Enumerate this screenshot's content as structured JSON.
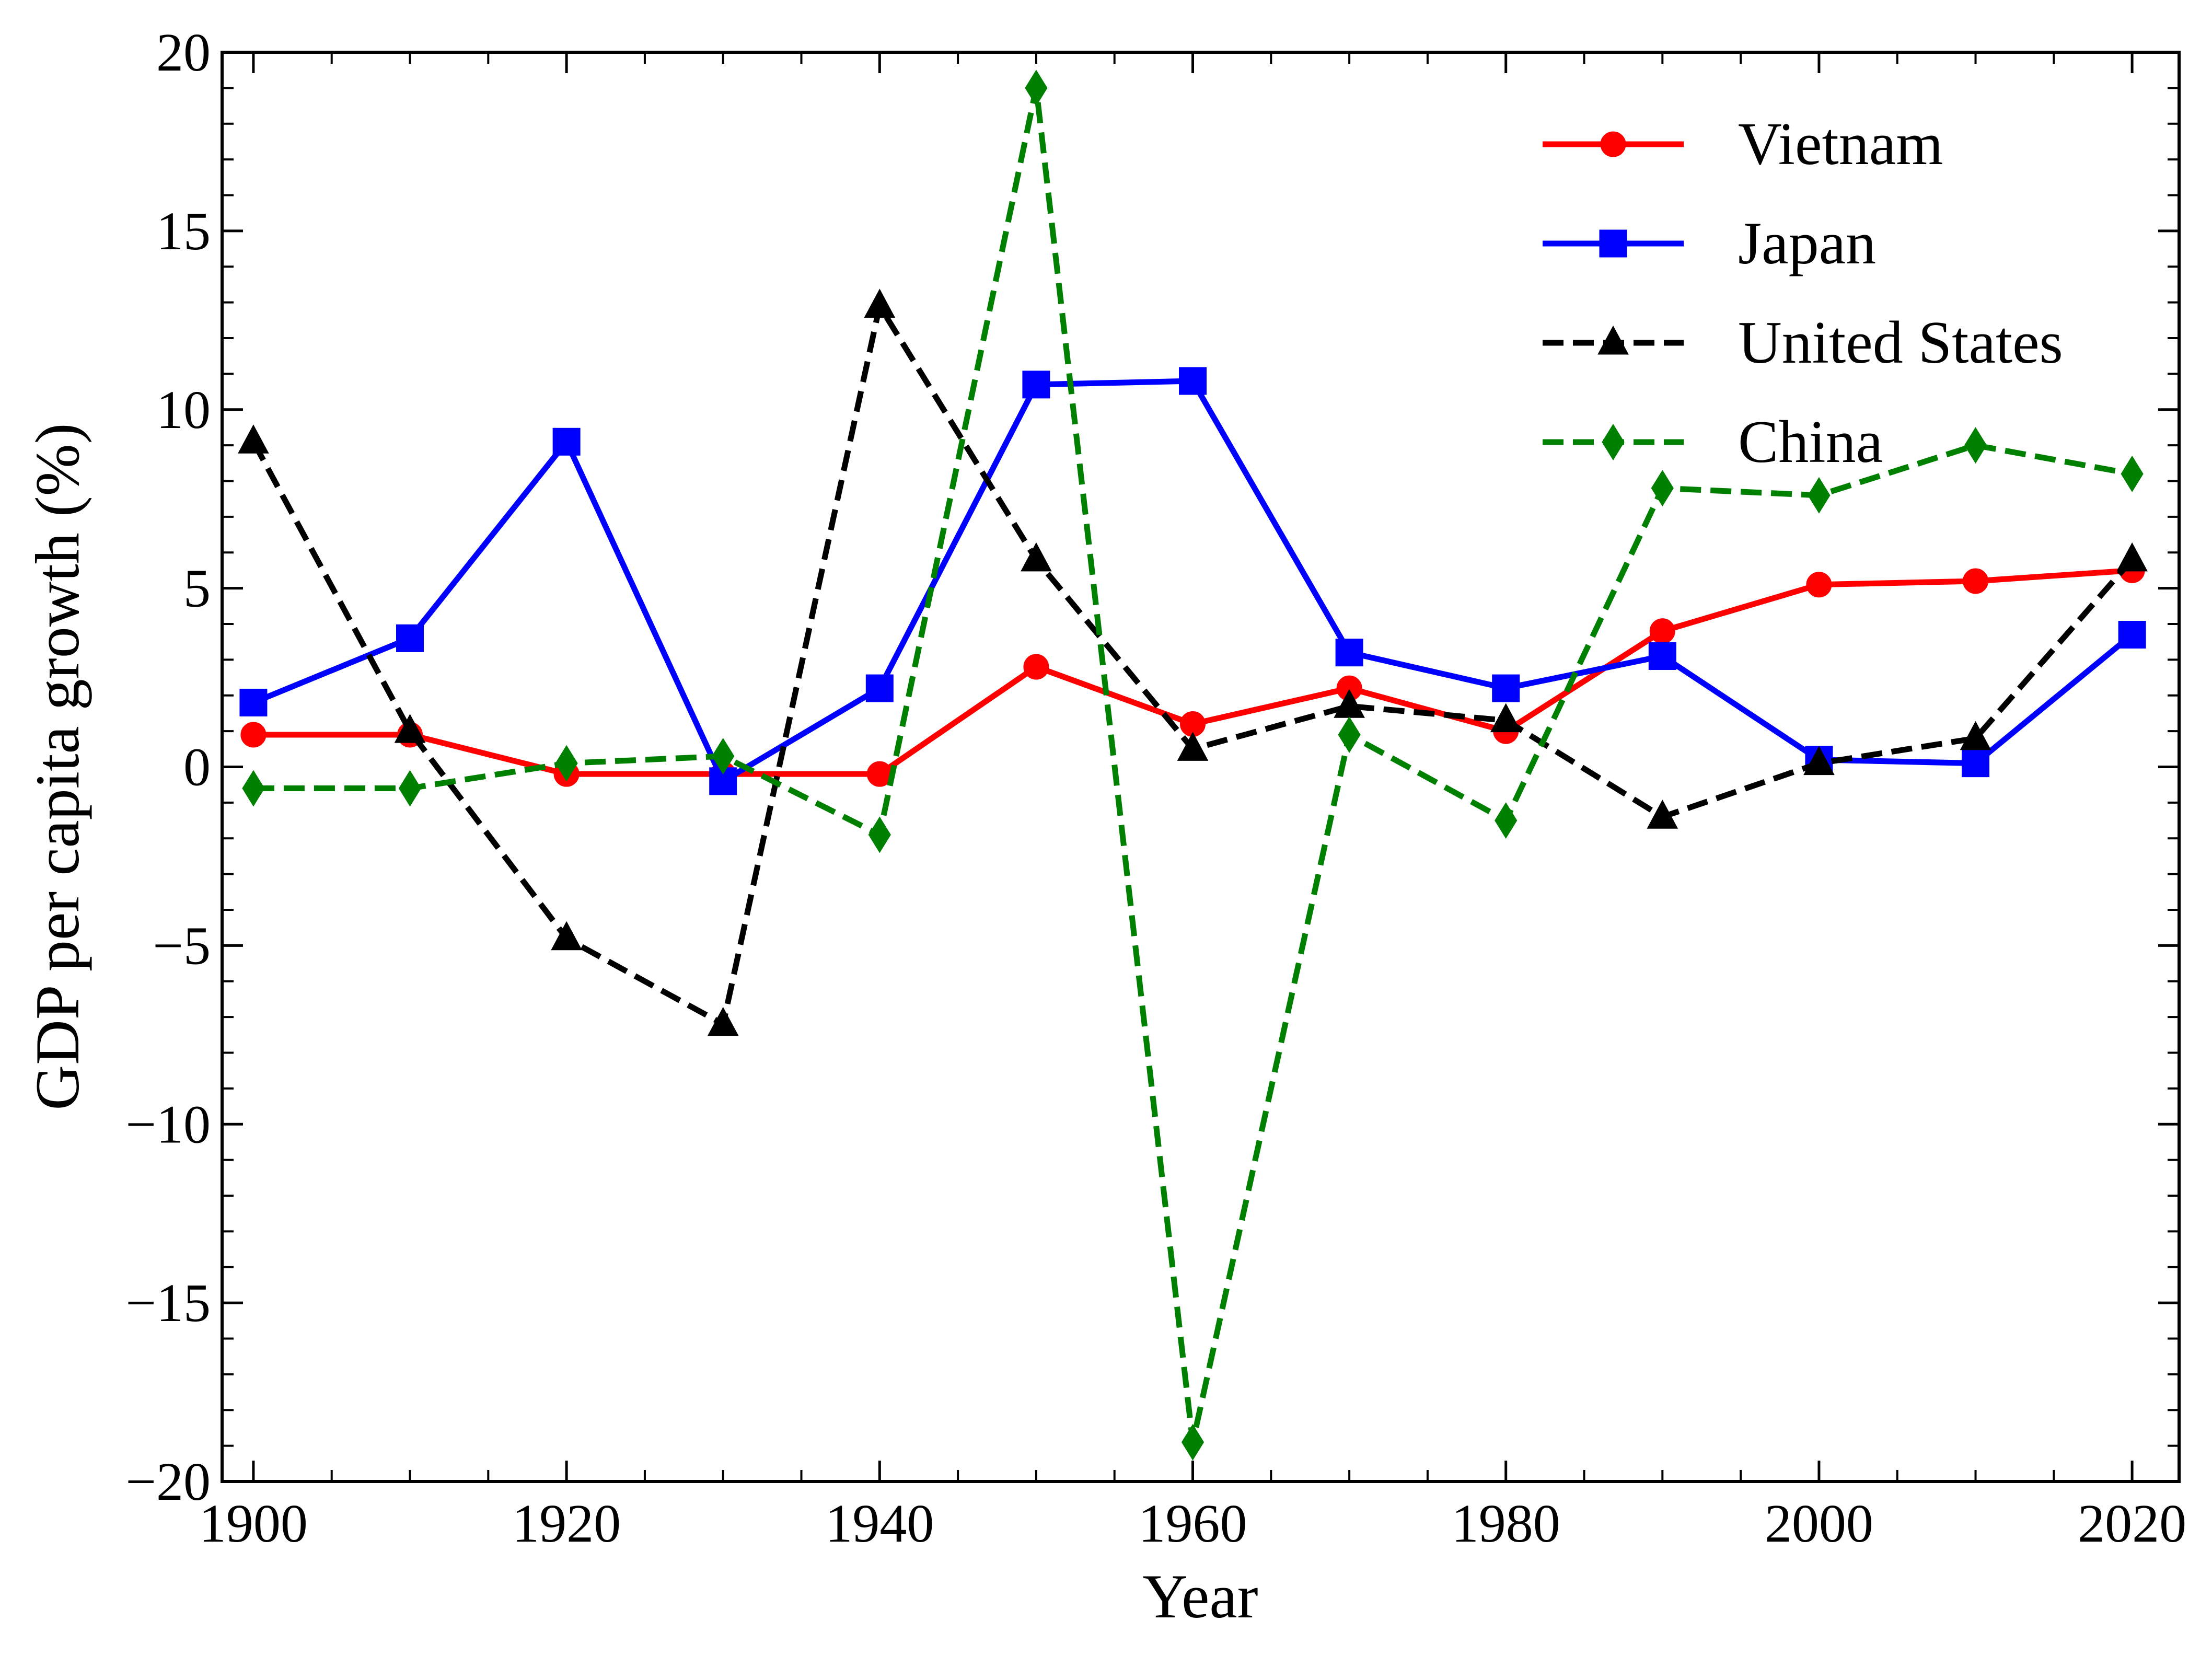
{
  "chart_data": {
    "type": "line",
    "title": "",
    "xlabel": "Year",
    "ylabel": "GDP per capita growth (%)",
    "xlim": [
      1898,
      2023
    ],
    "ylim": [
      -20,
      20
    ],
    "x": [
      1900,
      1910,
      1920,
      1930,
      1940,
      1950,
      1960,
      1970,
      1980,
      1990,
      2000,
      2010,
      2020
    ],
    "xticks": [
      1900,
      1920,
      1940,
      1960,
      1980,
      2000,
      2020
    ],
    "xtick_labels": [
      "1900",
      "1920",
      "1940",
      "1960",
      "1980",
      "2000",
      "2020"
    ],
    "yticks": [
      -20,
      -15,
      -10,
      -5,
      0,
      5,
      10,
      15,
      20
    ],
    "ytick_labels": [
      "−20",
      "−15",
      "−10",
      "−5",
      "0",
      "5",
      "10",
      "15",
      "20"
    ],
    "grid": false,
    "legend_position": "top-right",
    "series": [
      {
        "name": "Vietnam",
        "color": "#ff0000",
        "marker": "circle",
        "linestyle": "solid",
        "values": [
          0.9,
          0.9,
          -0.2,
          -0.2,
          -0.2,
          2.8,
          1.2,
          2.2,
          1.0,
          3.8,
          5.1,
          5.2,
          5.5
        ]
      },
      {
        "name": "Japan",
        "color": "#0000ff",
        "marker": "square",
        "linestyle": "solid",
        "values": [
          1.8,
          3.6,
          9.1,
          -0.4,
          2.2,
          10.7,
          10.8,
          3.2,
          2.2,
          3.1,
          0.2,
          0.1,
          3.7
        ]
      },
      {
        "name": "United States",
        "color": "#000000",
        "marker": "triangle",
        "linestyle": "dashed",
        "values": [
          9.1,
          1.0,
          -4.8,
          -7.2,
          12.9,
          5.8,
          0.5,
          1.7,
          1.3,
          -1.4,
          0.1,
          0.8,
          5.8
        ]
      },
      {
        "name": "China",
        "color": "#008000",
        "marker": "diamond",
        "linestyle": "dashed",
        "values": [
          -0.6,
          -0.6,
          0.1,
          0.3,
          -1.9,
          19.0,
          -18.9,
          0.9,
          -1.5,
          7.8,
          7.6,
          9.0,
          8.2
        ]
      }
    ]
  }
}
